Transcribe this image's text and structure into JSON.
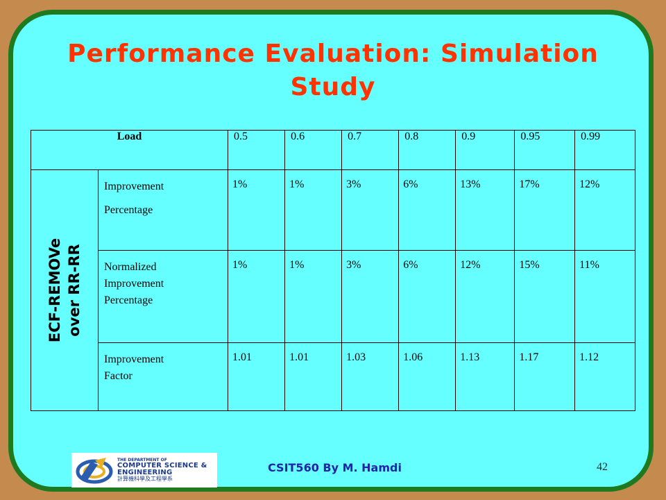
{
  "title_line1": "Performance Evaluation: Simulation",
  "title_line2": "Study",
  "table": {
    "header_label": "Load",
    "loads": [
      "0.5",
      "0.6",
      "0.7",
      "0.8",
      "0.9",
      "0.95",
      "0.99"
    ],
    "side_line1": "ECF-REMOVe",
    "side_line2": "over RR-RR",
    "rows": [
      {
        "metric_lines": [
          "Improvement",
          "Percentage"
        ],
        "values": [
          "1%",
          "1%",
          "3%",
          "6%",
          "13%",
          "17%",
          "12%"
        ]
      },
      {
        "metric_lines": [
          "Normalized",
          "Improvement",
          "Percentage"
        ],
        "values": [
          "1%",
          "1%",
          "3%",
          "6%",
          "12%",
          "15%",
          "11%"
        ]
      },
      {
        "metric_lines": [
          "Improvement",
          "Factor"
        ],
        "values": [
          "1.01",
          "1.01",
          "1.03",
          "1.06",
          "1.13",
          "1.17",
          "1.12"
        ]
      }
    ]
  },
  "logo": {
    "line1": "THE DEPARTMENT OF",
    "line2": "COMPUTER SCIENCE &",
    "line3": "ENGINEERING",
    "line4": "計算機科學及工程學系"
  },
  "footer": "CSIT560 By M. Hamdi",
  "page_number": "42",
  "colors": {
    "background": "#c48a4e",
    "slide": "#66ffff",
    "border": "#1f7a1f",
    "title": "#ff3300",
    "footer": "#2222aa"
  }
}
